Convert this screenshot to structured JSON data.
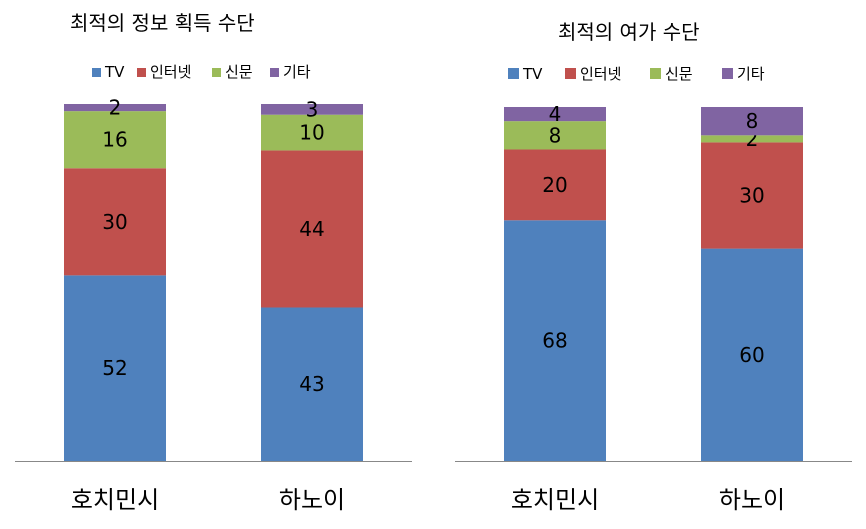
{
  "chart_data": [
    {
      "type": "bar",
      "stacked": true,
      "title": "최적의 정보 획득 수단",
      "categories": [
        "호치민시",
        "하노이"
      ],
      "series": [
        {
          "name": "TV",
          "color": "#4F81BD",
          "values": [
            52,
            43
          ]
        },
        {
          "name": "인터넷",
          "color": "#C0504D",
          "values": [
            30,
            44
          ]
        },
        {
          "name": "신문",
          "color": "#9BBB59",
          "values": [
            16,
            10
          ]
        },
        {
          "name": "기타",
          "color": "#8064A2",
          "values": [
            2,
            3
          ]
        }
      ],
      "ylim": [
        0,
        100
      ],
      "legend_position": "top",
      "grid": false
    },
    {
      "type": "bar",
      "stacked": true,
      "title": "최적의 여가 수단",
      "categories": [
        "호치민시",
        "하노이"
      ],
      "series": [
        {
          "name": "TV",
          "color": "#4F81BD",
          "values": [
            68,
            60
          ]
        },
        {
          "name": "인터넷",
          "color": "#C0504D",
          "values": [
            20,
            30
          ]
        },
        {
          "name": "신문",
          "color": "#9BBB59",
          "values": [
            8,
            2
          ]
        },
        {
          "name": "기타",
          "color": "#8064A2",
          "values": [
            4,
            8
          ]
        }
      ],
      "ylim": [
        0,
        100
      ],
      "legend_position": "top",
      "grid": false
    }
  ]
}
